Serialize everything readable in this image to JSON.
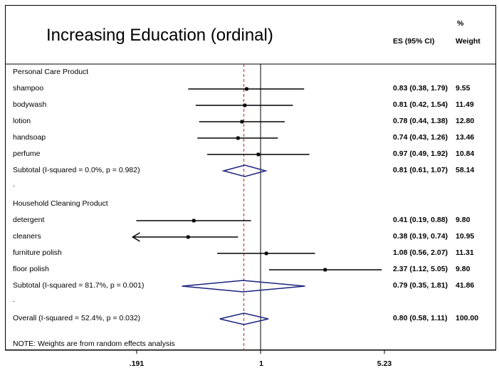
{
  "chart_data": {
    "type": "forest",
    "title": "Increasing Education (ordinal)",
    "header_es": "ES (95% CI)",
    "header_pct": "%",
    "header_weight": "Weight",
    "x_scale": "log",
    "xlim": [
      0.191,
      5.23
    ],
    "xticks": [
      ".191",
      "1",
      "5.23"
    ],
    "null_line": 1,
    "overall_es_line": 0.8,
    "groups": [
      {
        "label": "Personal Care Product",
        "studies": [
          {
            "name": "shampoo",
            "es": 0.83,
            "lo": 0.38,
            "hi": 1.79,
            "ci_text": "0.83 (0.38, 1.79)",
            "weight": "9.55"
          },
          {
            "name": "bodywash",
            "es": 0.81,
            "lo": 0.42,
            "hi": 1.54,
            "ci_text": "0.81 (0.42, 1.54)",
            "weight": "11.49"
          },
          {
            "name": "lotion",
            "es": 0.78,
            "lo": 0.44,
            "hi": 1.38,
            "ci_text": "0.78 (0.44, 1.38)",
            "weight": "12.80"
          },
          {
            "name": "handsoap",
            "es": 0.74,
            "lo": 0.43,
            "hi": 1.26,
            "ci_text": "0.74 (0.43, 1.26)",
            "weight": "13.46"
          },
          {
            "name": "perfume",
            "es": 0.97,
            "lo": 0.49,
            "hi": 1.92,
            "ci_text": "0.97 (0.49, 1.92)",
            "weight": "10.84"
          }
        ],
        "subtotal": {
          "label": "Subtotal  (I-squared = 0.0%, p = 0.982)",
          "es": 0.81,
          "lo": 0.61,
          "hi": 1.07,
          "ci_text": "0.81 (0.61, 1.07)",
          "weight": "58.14"
        }
      },
      {
        "label": "Household Cleaning Product",
        "studies": [
          {
            "name": "detergent",
            "es": 0.41,
            "lo": 0.19,
            "hi": 0.88,
            "ci_text": "0.41 (0.19, 0.88)",
            "weight": "9.80"
          },
          {
            "name": "cleaners",
            "es": 0.38,
            "lo": 0.19,
            "hi": 0.74,
            "ci_text": "0.38 (0.19, 0.74)",
            "weight": "10.95",
            "arrow_left": true
          },
          {
            "name": "furniture polish",
            "es": 1.08,
            "lo": 0.56,
            "hi": 2.07,
            "ci_text": "1.08 (0.56, 2.07)",
            "weight": "11.31"
          },
          {
            "name": "floor polish",
            "es": 2.37,
            "lo": 1.12,
            "hi": 5.05,
            "ci_text": "2.37 (1.12, 5.05)",
            "weight": "9.80"
          }
        ],
        "subtotal": {
          "label": "Subtotal  (I-squared = 81.7%, p = 0.001)",
          "es": 0.79,
          "lo": 0.35,
          "hi": 1.81,
          "ci_text": "0.79 (0.35, 1.81)",
          "weight": "41.86"
        }
      }
    ],
    "overall": {
      "label": "Overall  (I-squared = 52.4%, p = 0.032)",
      "es": 0.8,
      "lo": 0.58,
      "hi": 1.11,
      "ci_text": "0.80 (0.58, 1.11)",
      "weight": "100.00"
    },
    "note": "NOTE: Weights are from random effects analysis",
    "separator_dot": ".",
    "colors": {
      "ci_line": "#000000",
      "diamond": "#1a237e",
      "overall_line": "#b22222"
    }
  }
}
